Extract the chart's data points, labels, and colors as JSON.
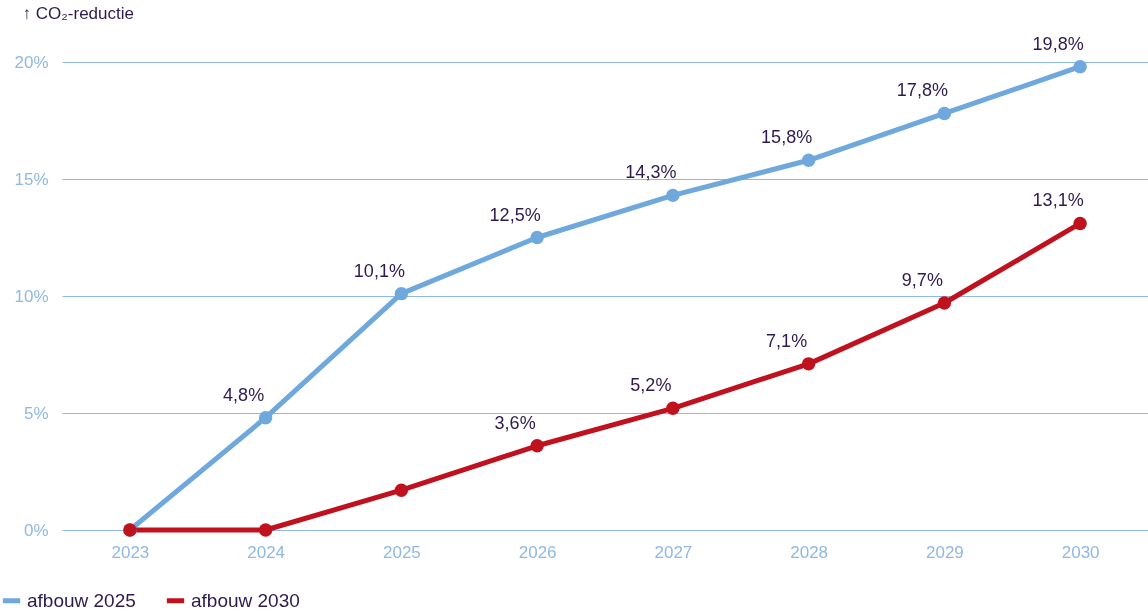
{
  "chart_data": {
    "type": "line",
    "ylabel": "↑ CO₂-reductie",
    "categories": [
      "2023",
      "2024",
      "2025",
      "2026",
      "2027",
      "2028",
      "2029",
      "2030"
    ],
    "series": [
      {
        "name": "afbouw 2025",
        "color": "#6fa8dc",
        "values": [
          0,
          4.8,
          10.1,
          12.5,
          14.3,
          15.8,
          17.8,
          19.8
        ],
        "value_labels": [
          null,
          "4,8%",
          "10,1%",
          "12,5%",
          "14,3%",
          "15,8%",
          "17,8%",
          "19,8%"
        ]
      },
      {
        "name": "afbouw 2030",
        "color": "#c0111f",
        "values": [
          0,
          0,
          1.7,
          3.6,
          5.2,
          7.1,
          9.7,
          13.1
        ],
        "value_labels": [
          null,
          null,
          null,
          "3,6%",
          "5,2%",
          "7,1%",
          "9,7%",
          "13,1%"
        ]
      }
    ],
    "ylim": [
      0,
      20
    ],
    "yticks": [
      {
        "value": 0,
        "label": "0%"
      },
      {
        "value": 5,
        "label": "5%"
      },
      {
        "value": 10,
        "label": "10%"
      },
      {
        "value": 15,
        "label": "15%"
      },
      {
        "value": 20,
        "label": "20%"
      }
    ],
    "grid": "y",
    "legend": "bottom left",
    "marker": "circle",
    "line_style": "solid"
  }
}
